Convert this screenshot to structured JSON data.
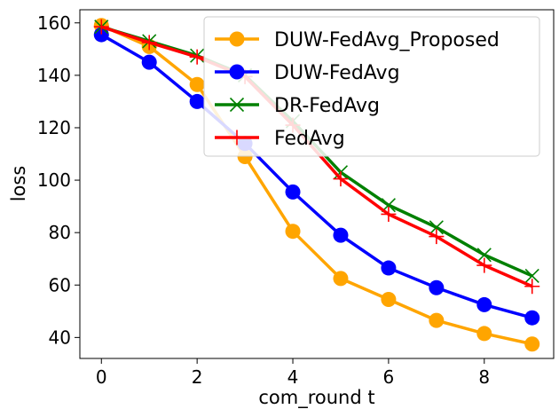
{
  "chart_data": {
    "type": "line",
    "title": "",
    "xlabel": "com_round t",
    "ylabel": "loss",
    "xlim": [
      -0.45,
      9.45
    ],
    "ylim": [
      32,
      165
    ],
    "xticks": [
      0,
      2,
      4,
      6,
      8
    ],
    "yticks": [
      40,
      60,
      80,
      100,
      120,
      140,
      160
    ],
    "grid": false,
    "legend_position": "upper-right",
    "x": [
      0,
      1,
      2,
      3,
      4,
      5,
      6,
      7,
      8,
      9
    ],
    "series": [
      {
        "name": "DUW-FedAvg_Proposed",
        "color": "#ffa500",
        "marker": "circle",
        "values": [
          159,
          151,
          136.5,
          109,
          80.5,
          62.5,
          54.5,
          46.5,
          41.5,
          37.5
        ]
      },
      {
        "name": "DUW-FedAvg",
        "color": "#0000ff",
        "marker": "circle",
        "values": [
          155.5,
          145,
          130,
          114,
          95.5,
          79,
          66.5,
          59,
          52.5,
          47.5
        ]
      },
      {
        "name": "DR-FedAvg",
        "color": "#008000",
        "marker": "x",
        "values": [
          158.5,
          153,
          147.5,
          140,
          122.5,
          103,
          90.5,
          82,
          71.5,
          63.5
        ]
      },
      {
        "name": "FedAvg",
        "color": "#ff0000",
        "marker": "plus",
        "values": [
          158.5,
          152.5,
          147,
          139.5,
          121,
          100.5,
          87,
          78.5,
          67.5,
          59.5
        ]
      }
    ]
  }
}
